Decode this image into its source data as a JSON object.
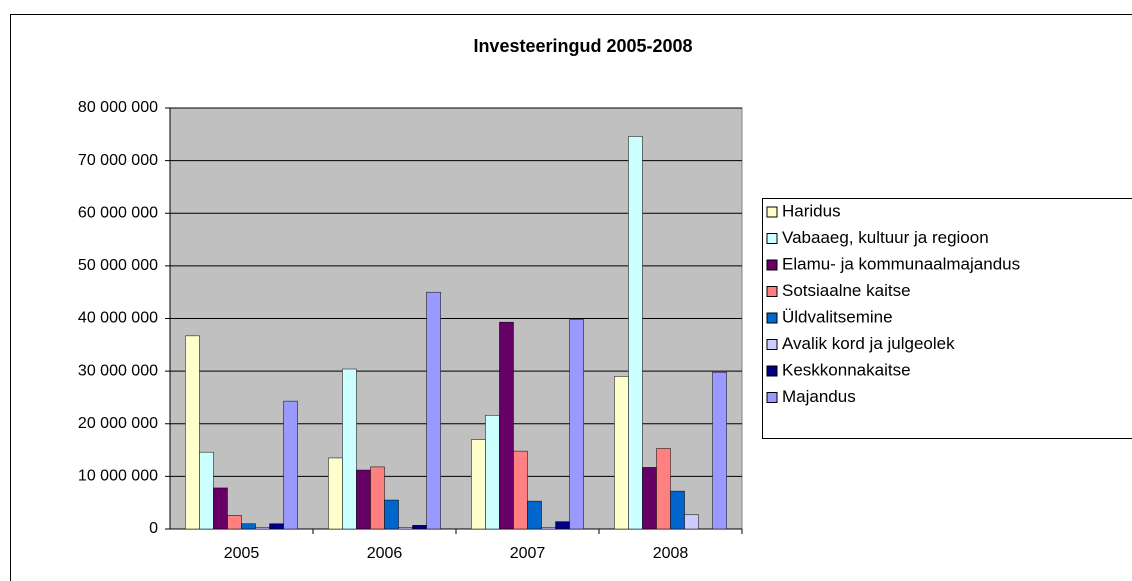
{
  "chart_data": {
    "type": "bar",
    "title": "Investeeringud 2005-2008",
    "categories": [
      "2005",
      "2006",
      "2007",
      "2008"
    ],
    "series": [
      {
        "name": "Haridus",
        "color": "#ffffcc",
        "values": [
          36700000,
          13500000,
          17000000,
          29000000
        ]
      },
      {
        "name": "Vabaaeg, kultuur ja regioon",
        "color": "#ccffff",
        "values": [
          14600000,
          30400000,
          21600000,
          74600000
        ]
      },
      {
        "name": "Elamu- ja kommunaalmajandus",
        "color": "#660066",
        "values": [
          7800000,
          11200000,
          39300000,
          11700000
        ]
      },
      {
        "name": "Sotsiaalne kaitse",
        "color": "#ff8080",
        "values": [
          2600000,
          11800000,
          14800000,
          15300000
        ]
      },
      {
        "name": "Üldvalitsemine",
        "color": "#0066cc",
        "values": [
          1000000,
          5500000,
          5300000,
          7200000
        ]
      },
      {
        "name": "Avalik kord ja julgeolek",
        "color": "#ccccff",
        "values": [
          300000,
          300000,
          300000,
          2700000
        ]
      },
      {
        "name": "Keskkonnakaitse",
        "color": "#000080",
        "values": [
          1000000,
          700000,
          1400000,
          0
        ]
      },
      {
        "name": "Majandus",
        "color": "#9999ff",
        "values": [
          24300000,
          45000000,
          39800000,
          29800000
        ]
      }
    ],
    "ylim": [
      0,
      80000000
    ],
    "yticks": [
      {
        "value": 0,
        "label": "0"
      },
      {
        "value": 10000000,
        "label": "10 000 000"
      },
      {
        "value": 20000000,
        "label": "20 000 000"
      },
      {
        "value": 30000000,
        "label": "30 000 000"
      },
      {
        "value": 40000000,
        "label": "40 000 000"
      },
      {
        "value": 50000000,
        "label": "50 000 000"
      },
      {
        "value": 60000000,
        "label": "60 000 000"
      },
      {
        "value": 70000000,
        "label": "70 000 000"
      },
      {
        "value": 80000000,
        "label": "80 000 000"
      }
    ],
    "grid": true,
    "legend": "right"
  }
}
